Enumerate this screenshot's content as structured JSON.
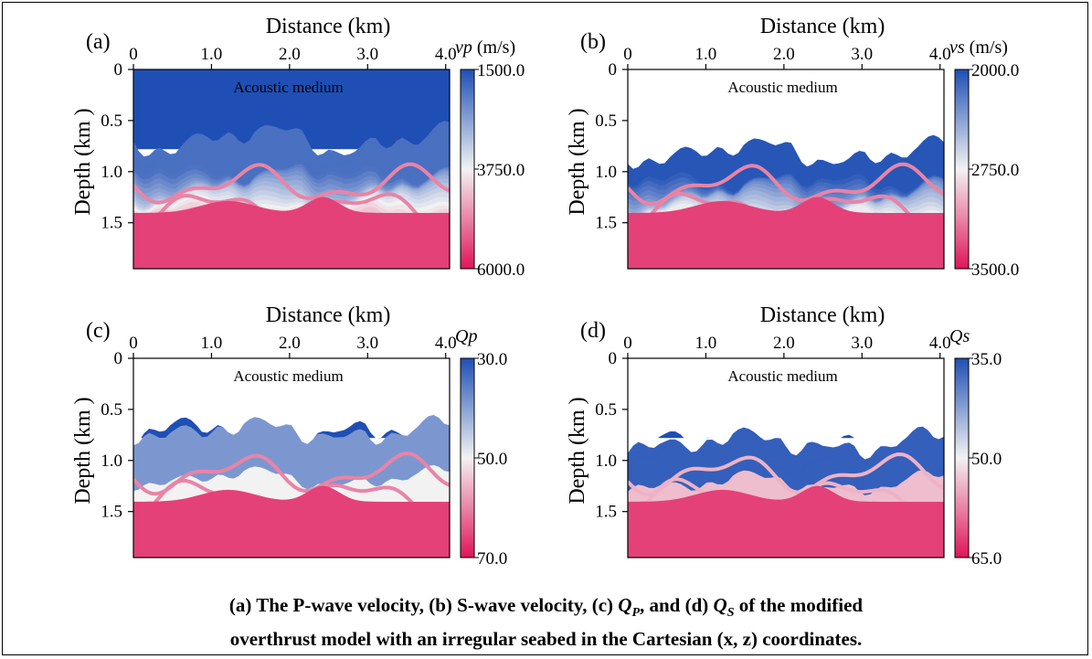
{
  "chart_data": [
    {
      "type": "heatmap",
      "panel_label": "(a)",
      "title": "Distance (km)",
      "xlabel": "Distance (km)",
      "ylabel": "Depth (km )",
      "xticks": [
        "0",
        "1.0",
        "2.0",
        "3.0",
        "4.0"
      ],
      "xtick_values": [
        0,
        1,
        2,
        3,
        4
      ],
      "yticks": [
        "0",
        "0.5",
        "1.0",
        "1.5"
      ],
      "ytick_values": [
        0,
        0.5,
        1.0,
        1.5
      ],
      "xlim": [
        0,
        4.05
      ],
      "ylim": [
        0,
        1.95
      ],
      "annotation": "Acoustic medium",
      "colorbar": {
        "label_main": "vp",
        "label_unit": " (m/s)",
        "ticks": [
          "1500.0",
          "3750.0",
          "6000.0"
        ],
        "tick_values": [
          1500,
          3750,
          6000
        ],
        "range": [
          1500,
          6000
        ]
      },
      "variable": "vp"
    },
    {
      "type": "heatmap",
      "panel_label": "(b)",
      "title": "Distance (km)",
      "xlabel": "Distance (km)",
      "ylabel": "Depth (km )",
      "xticks": [
        "0",
        "1.0",
        "2.0",
        "3.0",
        "4.0"
      ],
      "xtick_values": [
        0,
        1,
        2,
        3,
        4
      ],
      "yticks": [
        "0",
        "0.5",
        "1.0",
        "1.5"
      ],
      "ytick_values": [
        0,
        0.5,
        1.0,
        1.5
      ],
      "xlim": [
        0,
        4.05
      ],
      "ylim": [
        0,
        1.95
      ],
      "annotation": "Acoustic medium",
      "colorbar": {
        "label_main": "vs",
        "label_unit": " (m/s)",
        "ticks": [
          "2000.0",
          "2750.0",
          "3500.0"
        ],
        "tick_values": [
          2000,
          2750,
          3500
        ],
        "range": [
          2000,
          3500
        ]
      },
      "variable": "vs"
    },
    {
      "type": "heatmap",
      "panel_label": "(c)",
      "title": "Distance (km)",
      "xlabel": "Distance (km)",
      "ylabel": "Depth (km )",
      "xticks": [
        "0",
        "1.0",
        "2.0",
        "3.0",
        "4.0"
      ],
      "xtick_values": [
        0,
        1,
        2,
        3,
        4
      ],
      "yticks": [
        "0",
        "0.5",
        "1.0",
        "1.5"
      ],
      "ytick_values": [
        0,
        0.5,
        1.0,
        1.5
      ],
      "xlim": [
        0,
        4.05
      ],
      "ylim": [
        0,
        1.95
      ],
      "annotation": "Acoustic medium",
      "colorbar": {
        "label_main": "Qp",
        "label_unit": "",
        "ticks": [
          "30.0",
          "50.0",
          "70.0"
        ],
        "tick_values": [
          30,
          50,
          70
        ],
        "range": [
          30,
          70
        ]
      },
      "variable": "Qp"
    },
    {
      "type": "heatmap",
      "panel_label": "(d)",
      "title": "Distance (km)",
      "xlabel": "Distance (km)",
      "ylabel": "Depth (km )",
      "xticks": [
        "0",
        "1.0",
        "2.0",
        "3.0",
        "4.0"
      ],
      "xtick_values": [
        0,
        1,
        2,
        3,
        4
      ],
      "yticks": [
        "0",
        "0.5",
        "1.0",
        "1.5"
      ],
      "ytick_values": [
        0,
        0.5,
        1.0,
        1.5
      ],
      "xlim": [
        0,
        4.05
      ],
      "ylim": [
        0,
        1.95
      ],
      "annotation": "Acoustic medium",
      "colorbar": {
        "label_main": "Qs",
        "label_unit": "",
        "ticks": [
          "35.0",
          "50.0",
          "65.0"
        ],
        "tick_values": [
          35,
          50,
          65
        ],
        "range": [
          35,
          65
        ]
      },
      "variable": "Qs"
    }
  ],
  "colors": {
    "low": "#1f4fb5",
    "mid": "#f2f2f2",
    "high": "#e0155a",
    "annotation_a": "#f0e020",
    "annotation_other": "#000000"
  },
  "caption": {
    "line1_a": "(a) The P-wave velocity, (b) S-wave velocity, (c) ",
    "qp_letter": "Q",
    "qp_sub": "P",
    "line1_b": ", and (d) ",
    "qs_letter": "Q",
    "qs_sub": "S",
    "line1_c": " of the modified",
    "line2": "overthrust model with an irregular seabed in the Cartesian (x, z) coordinates."
  }
}
